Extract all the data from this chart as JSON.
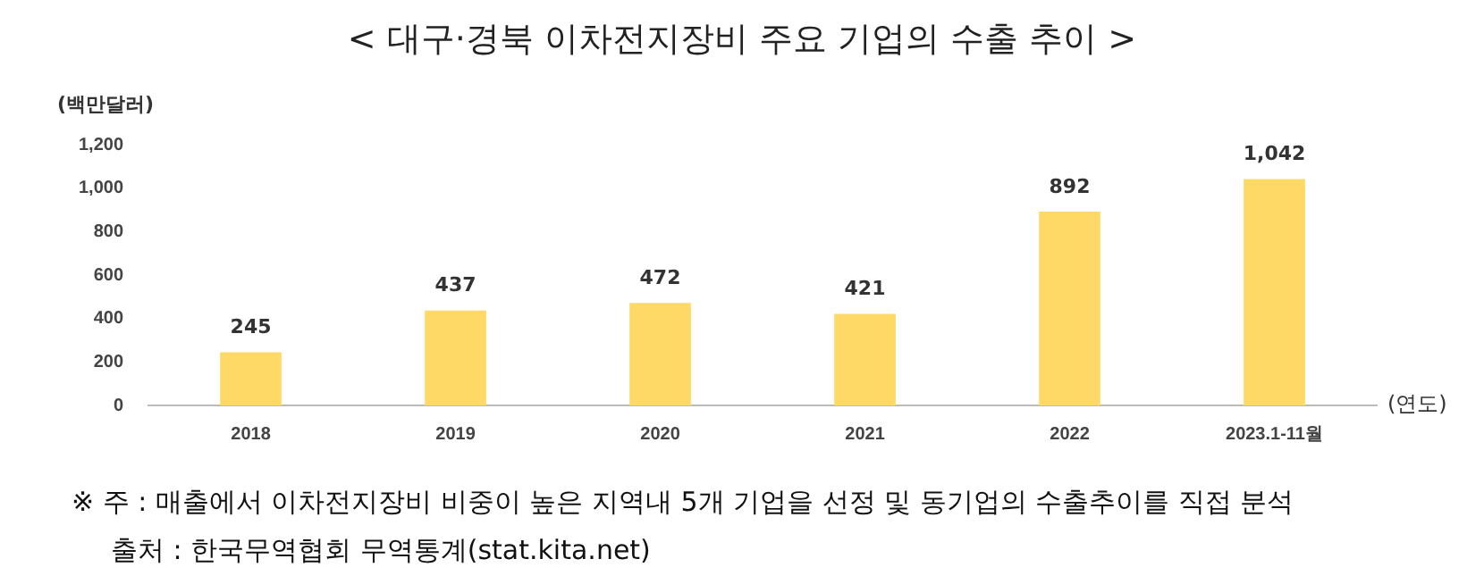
{
  "chart_data": {
    "type": "bar",
    "title": "< 대구·경북 이차전지장비 주요 기업의 수출 추이 >",
    "ylabel": "(백만달러)",
    "xlabel": "(연도)",
    "categories": [
      "2018",
      "2019",
      "2020",
      "2021",
      "2022",
      "2023.1-11월"
    ],
    "values": [
      245,
      437,
      472,
      421,
      892,
      1042
    ],
    "value_labels": [
      "245",
      "437",
      "472",
      "421",
      "892",
      "1,042"
    ],
    "color": "#ffd966",
    "ylim": [
      0,
      1200
    ],
    "yticks": [
      0,
      {
        "value": 200,
        "label": "200"
      },
      {
        "value": 400,
        "label": "400"
      },
      {
        "value": 600,
        "label": "600"
      },
      {
        "value": 800,
        "label": "800"
      },
      {
        "value": 1000,
        "label": "1,000"
      },
      {
        "value": 1200,
        "label": "1,200"
      }
    ],
    "grid": false,
    "legend": false,
    "annotations": [
      "※ 주 : 매출에서 이차전지장비 비중이 높은 지역내 5개 기업을 선정 및 동기업의 수출추이를 직접 분석",
      "출처 : 한국무역협회 무역통계(stat.kita.net)"
    ]
  }
}
